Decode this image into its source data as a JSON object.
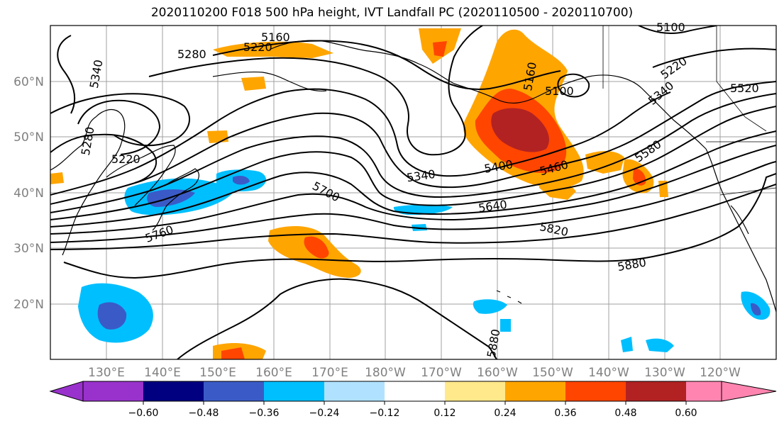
{
  "title": "2020110200 F018 500 hPa height, IVT Landfall PC (2020110500 - 2020110700)",
  "lat_labels": [
    "60°N",
    "50°N",
    "40°N",
    "30°N",
    "20°N"
  ],
  "lon_labels": [
    "130°E",
    "140°E",
    "150°E",
    "160°E",
    "170°E",
    "180°W",
    "170°W",
    "160°W",
    "150°W",
    "140°W",
    "130°W",
    "120°W"
  ],
  "contour_labels": [
    "5160",
    "5220",
    "5280",
    "5340",
    "5280",
    "5220",
    "5160",
    "5100",
    "5220",
    "5520",
    "5340",
    "5400",
    "5460",
    "5580",
    "5700",
    "5640",
    "5760",
    "5820",
    "5880",
    "5880",
    "5100",
    "5340"
  ],
  "colorbar": {
    "ticks": [
      "−0.60",
      "−0.48",
      "−0.36",
      "−0.24",
      "−0.12",
      "0.12",
      "0.24",
      "0.36",
      "0.48",
      "0.60"
    ],
    "colors": [
      "#9932cc",
      "#000080",
      "#3a5bc7",
      "#00bfff",
      "#b0e2ff",
      "#ffffff",
      "#ffe98a",
      "#ffa500",
      "#ff4500",
      "#b22222",
      "#ff85b0"
    ]
  }
}
